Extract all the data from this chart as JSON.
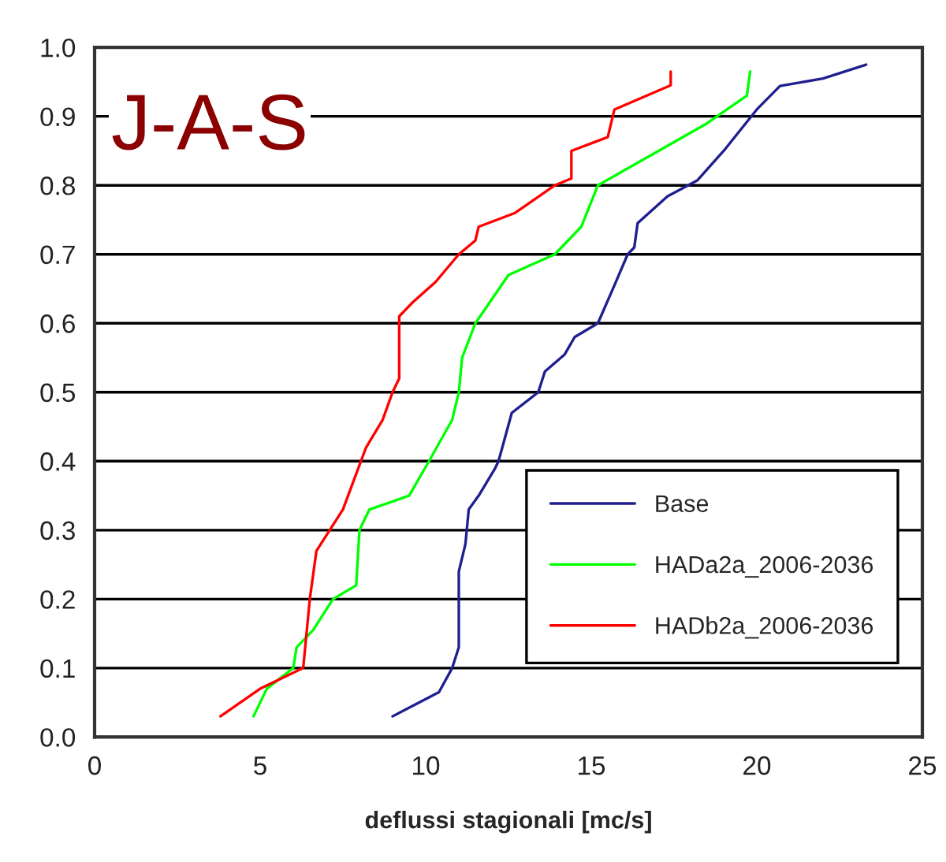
{
  "chart_data": {
    "type": "line",
    "xlabel": "deflussi stagionali [mc/s]",
    "annotations": [
      "J-A-S"
    ],
    "xlim": [
      0,
      25
    ],
    "xticks": [
      0,
      5,
      10,
      15,
      20,
      25
    ],
    "ylim": [
      0,
      1
    ],
    "yticks": [
      {
        "value": 0,
        "label": "0.0"
      },
      0.1,
      0.2,
      0.3,
      0.4,
      0.5,
      0.6,
      0.7,
      0.8,
      0.9,
      {
        "value": 1,
        "label": "1.0"
      }
    ],
    "grid": "y",
    "legend": "bottom right",
    "marker": "none",
    "line_style": "solid",
    "series": [
      {
        "name": "Base",
        "color": "#1f1f8f",
        "x": [
          9.0,
          10.4,
          10.8,
          11.0,
          11.0,
          11.2,
          11.3,
          11.6,
          12.1,
          12.2,
          12.6,
          13.4,
          13.6,
          14.2,
          14.5,
          15.2,
          15.7,
          16.1,
          16.3,
          16.4,
          17.3,
          18.2,
          19.0,
          20.0,
          20.7,
          22.0,
          23.3
        ],
        "values": [
          0.03,
          0.065,
          0.1,
          0.13,
          0.24,
          0.28,
          0.33,
          0.35,
          0.39,
          0.4,
          0.47,
          0.5,
          0.53,
          0.555,
          0.58,
          0.6,
          0.655,
          0.7,
          0.71,
          0.745,
          0.784,
          0.807,
          0.85,
          0.91,
          0.944,
          0.955,
          0.975
        ]
      },
      {
        "name": "HADa2a_2006-2036",
        "color": "#00ff00",
        "x": [
          4.8,
          5.2,
          6.0,
          6.1,
          6.6,
          7.2,
          7.9,
          8.0,
          8.3,
          9.5,
          10.1,
          10.8,
          11.0,
          11.1,
          11.5,
          12.5,
          13.9,
          14.7,
          15.2,
          17.4,
          18.5,
          19.7,
          19.8
        ],
        "values": [
          0.03,
          0.07,
          0.1,
          0.13,
          0.155,
          0.2,
          0.22,
          0.3,
          0.33,
          0.35,
          0.4,
          0.46,
          0.5,
          0.55,
          0.6,
          0.67,
          0.7,
          0.74,
          0.8,
          0.86,
          0.89,
          0.93,
          0.965
        ]
      },
      {
        "name": "HADb2a_2006-2036",
        "color": "#ff0000",
        "x": [
          3.8,
          5.0,
          6.3,
          6.4,
          6.5,
          6.7,
          7.1,
          7.5,
          8.2,
          8.7,
          9.0,
          9.2,
          9.2,
          9.6,
          10.3,
          11.0,
          11.5,
          11.6,
          12.7,
          13.9,
          14.4,
          14.4,
          15.5,
          15.7,
          17.4,
          17.4
        ],
        "values": [
          0.03,
          0.07,
          0.1,
          0.15,
          0.2,
          0.27,
          0.3,
          0.33,
          0.42,
          0.46,
          0.5,
          0.52,
          0.61,
          0.63,
          0.66,
          0.7,
          0.72,
          0.74,
          0.76,
          0.8,
          0.81,
          0.85,
          0.87,
          0.91,
          0.945,
          0.965
        ]
      }
    ]
  }
}
